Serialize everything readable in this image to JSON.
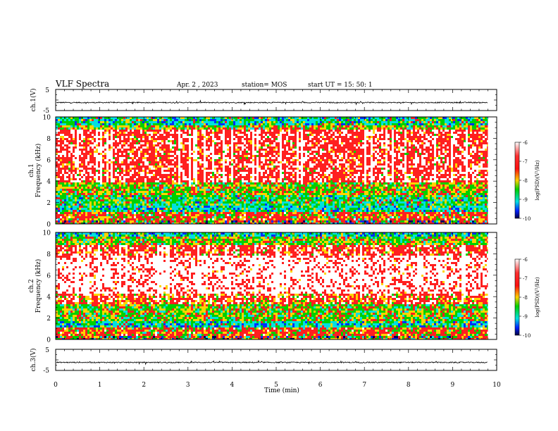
{
  "header": {
    "title": "VLF Spectra",
    "date": "Apr. 2 , 2023",
    "station": "station= MOS",
    "start": "start  UT =   15: 50: 1"
  },
  "chart_data": [
    {
      "type": "line",
      "id": "ch1-waveform",
      "ylabel": "ch.1(V)",
      "ylim": [
        -5,
        5
      ],
      "yticks": [
        "5",
        "-5"
      ],
      "xlim": [
        0,
        10
      ],
      "baseline": -1.2,
      "trace_end": 9.8
    },
    {
      "type": "heatmap",
      "id": "ch1-spectrogram",
      "ylabel_line1": "ch.1",
      "ylabel_line2": "Frequency (kHz)",
      "ylim": [
        0,
        10
      ],
      "yticks": [
        "0",
        "2",
        "4",
        "6",
        "8",
        "10"
      ],
      "xlim": [
        0,
        10
      ],
      "data_end": 9.8,
      "colorbar": {
        "label": "log(PSD)(V²/Hz)",
        "min": -10,
        "max": -6,
        "ticks": [
          "-6",
          "-7",
          "-8",
          "-9",
          "-10"
        ]
      }
    },
    {
      "type": "heatmap",
      "id": "ch2-spectrogram",
      "ylabel_line1": "ch.2",
      "ylabel_line2": "Frequency (kHz)",
      "ylim": [
        0,
        10
      ],
      "yticks": [
        "0",
        "2",
        "4",
        "6",
        "8",
        "10"
      ],
      "xlim": [
        0,
        10
      ],
      "data_end": 9.8,
      "colorbar": {
        "label": "log(PSD)(V²/Hz)",
        "min": -10,
        "max": -6,
        "ticks": [
          "-6",
          "-7",
          "-8",
          "-9",
          "-10"
        ]
      }
    },
    {
      "type": "line",
      "id": "ch3-waveform",
      "ylabel": "ch.3(V)",
      "ylim": [
        -5,
        5
      ],
      "yticks": [
        "5",
        "-5"
      ],
      "xlim": [
        0,
        10
      ],
      "baseline": -1.2,
      "trace_end": 9.8
    }
  ],
  "xaxis": {
    "label": "Time  (min)",
    "ticks": [
      "0",
      "1",
      "2",
      "3",
      "4",
      "5",
      "6",
      "7",
      "8",
      "9",
      "10"
    ]
  },
  "colors": {
    "red": "#ff2020",
    "yellow": "#ffd400",
    "green": "#00d000",
    "cyan": "#00e0e0",
    "blue": "#0030ff",
    "dark": "#000060"
  }
}
